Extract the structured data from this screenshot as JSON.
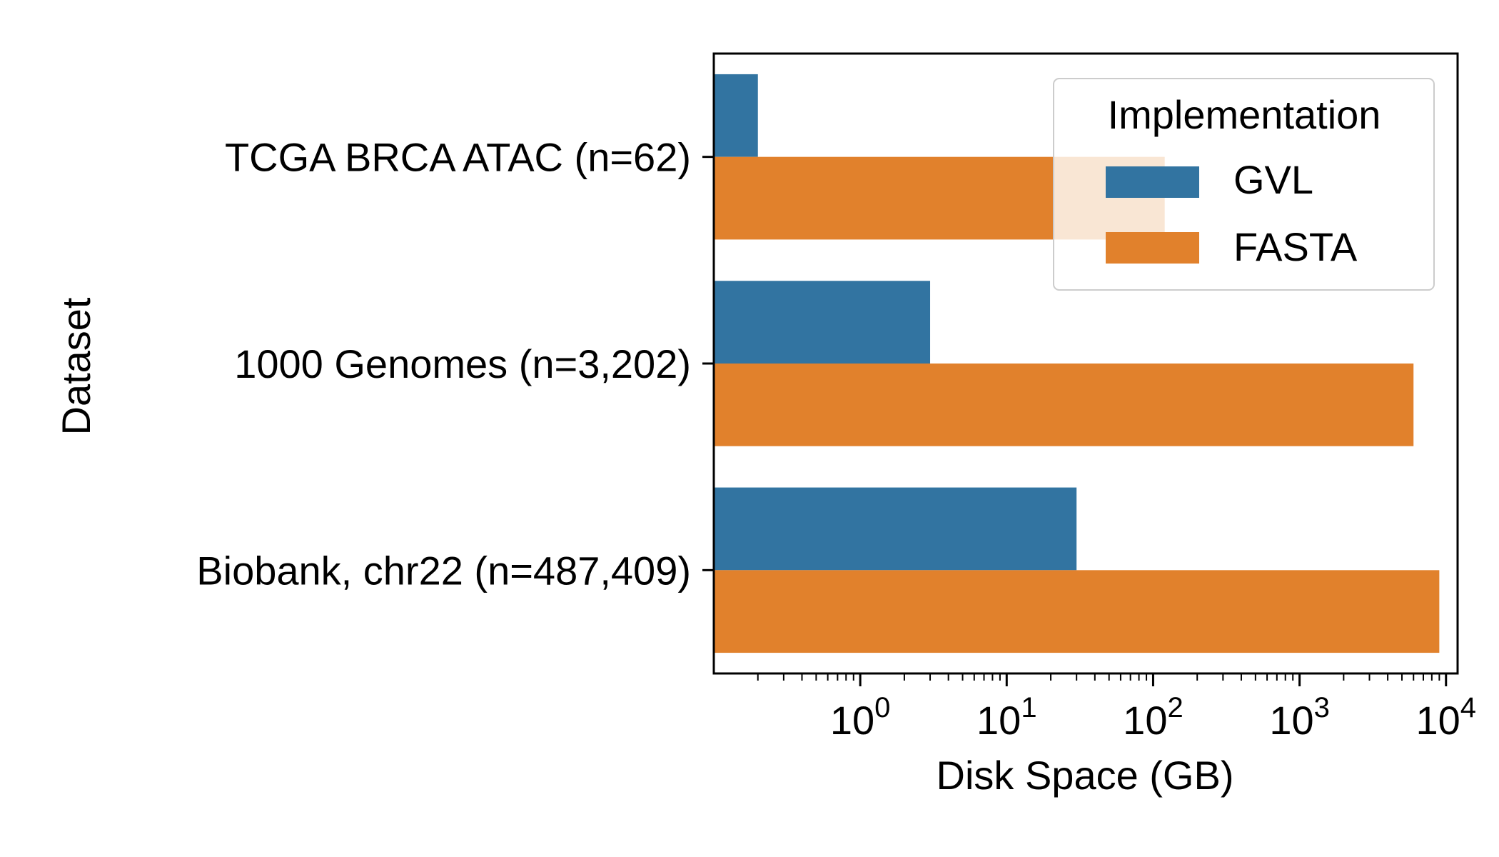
{
  "chart_data": {
    "type": "bar",
    "orientation": "horizontal",
    "categories": [
      "TCGA BRCA ATAC (n=62)",
      "1000 Genomes (n=3,202)",
      "Biobank, chr22 (n=487,409)"
    ],
    "series": [
      {
        "name": "GVL",
        "values": [
          0.2,
          3.0,
          30.0
        ],
        "color": "#3274a1"
      },
      {
        "name": "FASTA",
        "values": [
          120,
          6000,
          9000
        ],
        "color": "#e1812c"
      }
    ],
    "xlabel": "Disk Space (GB)",
    "ylabel": "Dataset",
    "xscale": "log",
    "xlim": [
      0.1,
      12000
    ],
    "xticks": [
      {
        "base": "10",
        "exp": "0"
      },
      {
        "base": "10",
        "exp": "1"
      },
      {
        "base": "10",
        "exp": "2"
      },
      {
        "base": "10",
        "exp": "3"
      },
      {
        "base": "10",
        "exp": "4"
      }
    ],
    "legend": {
      "title": "Implementation",
      "placement": "top-right"
    },
    "grid": false
  }
}
